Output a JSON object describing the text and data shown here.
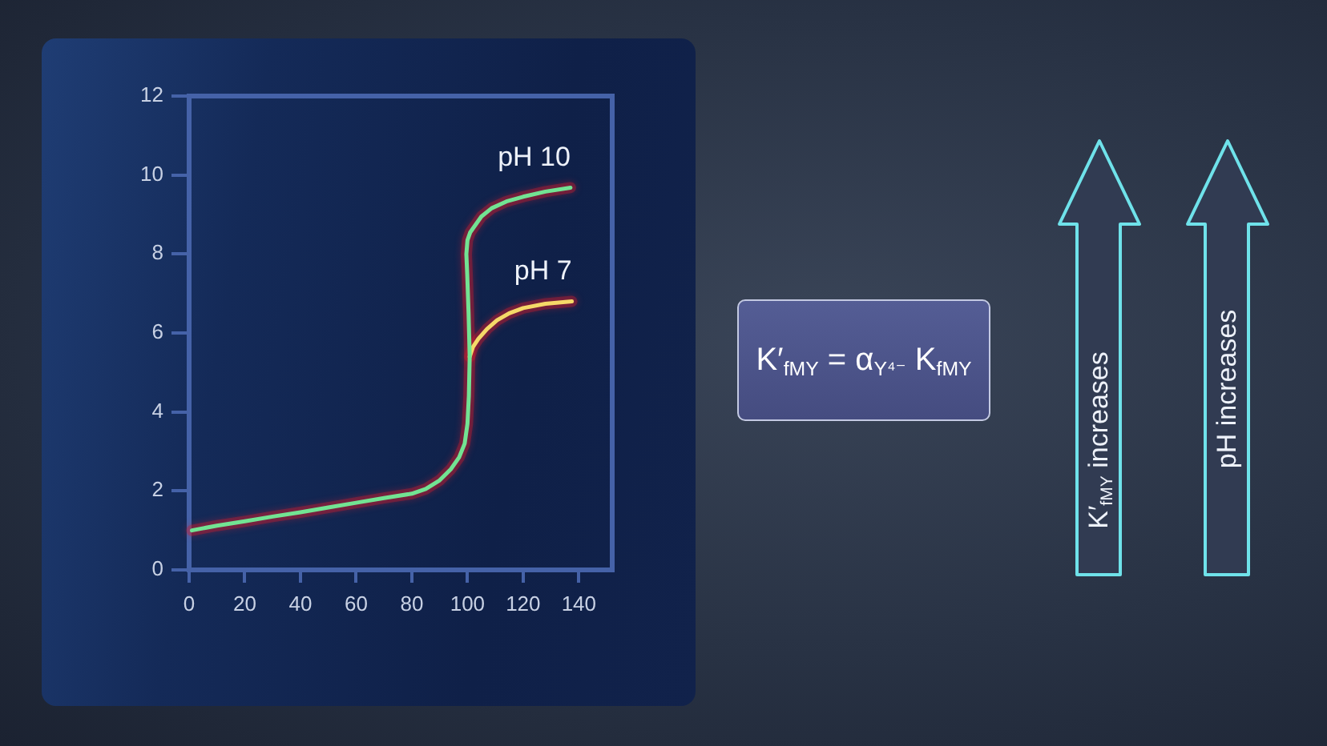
{
  "chart_data": {
    "type": "line",
    "series": [
      {
        "name": "pH 10",
        "color": "#72e393",
        "x": [
          1,
          10,
          20,
          30,
          40,
          50,
          60,
          70,
          80,
          85,
          90,
          94,
          97,
          99,
          100,
          100.5,
          100.8,
          100.4,
          99.9,
          99.6,
          100,
          101,
          102,
          105,
          108.7,
          114,
          120,
          128,
          137
        ],
        "values": [
          1.0,
          1.12,
          1.23,
          1.35,
          1.46,
          1.58,
          1.7,
          1.82,
          1.93,
          2.05,
          2.27,
          2.55,
          2.85,
          3.2,
          3.7,
          4.4,
          5.4,
          6.5,
          7.5,
          8.0,
          8.35,
          8.55,
          8.65,
          8.95,
          9.16,
          9.33,
          9.45,
          9.58,
          9.68
        ]
      },
      {
        "name": "pH 7",
        "color": "#f5d968",
        "x": [
          100.8,
          102,
          103.9,
          107,
          110.6,
          115,
          120,
          128,
          137.5
        ],
        "values": [
          5.4,
          5.65,
          5.85,
          6.1,
          6.32,
          6.5,
          6.63,
          6.74,
          6.8
        ]
      }
    ],
    "xlim": [
      0,
      152
    ],
    "xticks": [
      0,
      20,
      40,
      60,
      80,
      100,
      120,
      140
    ],
    "ylim": [
      0,
      12
    ],
    "yticks": [
      0,
      2,
      4,
      6,
      8,
      10,
      12
    ],
    "grid": false,
    "marker": "none",
    "line_style": "solid",
    "annotations": [
      "K′$_{fMY}$ = α$_{Y⁴⁻}$ K$_{fMY}$",
      "K′$_{fMY}$ increases",
      "pH increases"
    ]
  }
}
